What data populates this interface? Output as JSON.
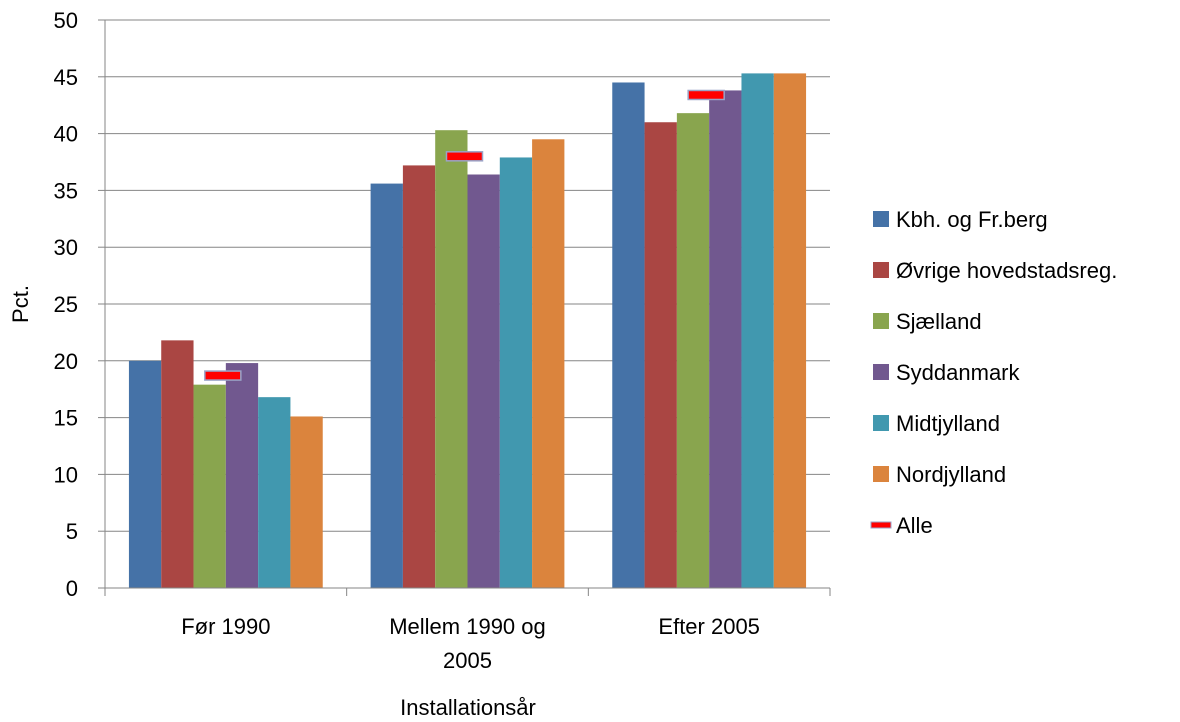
{
  "chart_data": {
    "type": "bar",
    "title": "",
    "xlabel": "Installationsår",
    "ylabel": "Pct.",
    "ylim": [
      0,
      50
    ],
    "yticks": [
      "0",
      "5",
      "10",
      "15",
      "20",
      "25",
      "30",
      "35",
      "40",
      "45",
      "50"
    ],
    "grid": true,
    "legend_position": "right",
    "categories": [
      [
        "Før 1990"
      ],
      [
        "Mellem 1990 og",
        "2005"
      ],
      [
        "Efter 2005"
      ]
    ],
    "series": [
      {
        "name": "Kbh. og Fr.berg",
        "color": "#4572A7",
        "values": [
          20.0,
          35.6,
          44.5
        ]
      },
      {
        "name": "Øvrige hovedstadsreg.",
        "color": "#AA4643",
        "values": [
          21.8,
          37.2,
          41.0
        ]
      },
      {
        "name": "Sjælland",
        "color": "#89A54E",
        "values": [
          17.9,
          40.3,
          41.8
        ]
      },
      {
        "name": "Syddanmark",
        "color": "#71588F",
        "values": [
          19.8,
          36.4,
          43.8
        ]
      },
      {
        "name": "Midtjylland",
        "color": "#4198AF",
        "values": [
          16.8,
          37.9,
          45.3
        ]
      },
      {
        "name": "Nordjylland",
        "color": "#DB843D",
        "values": [
          15.1,
          39.5,
          45.3
        ]
      }
    ],
    "overall": {
      "name": "Alle",
      "color": "#FF0000",
      "values": [
        18.7,
        38.0,
        43.4
      ]
    }
  }
}
